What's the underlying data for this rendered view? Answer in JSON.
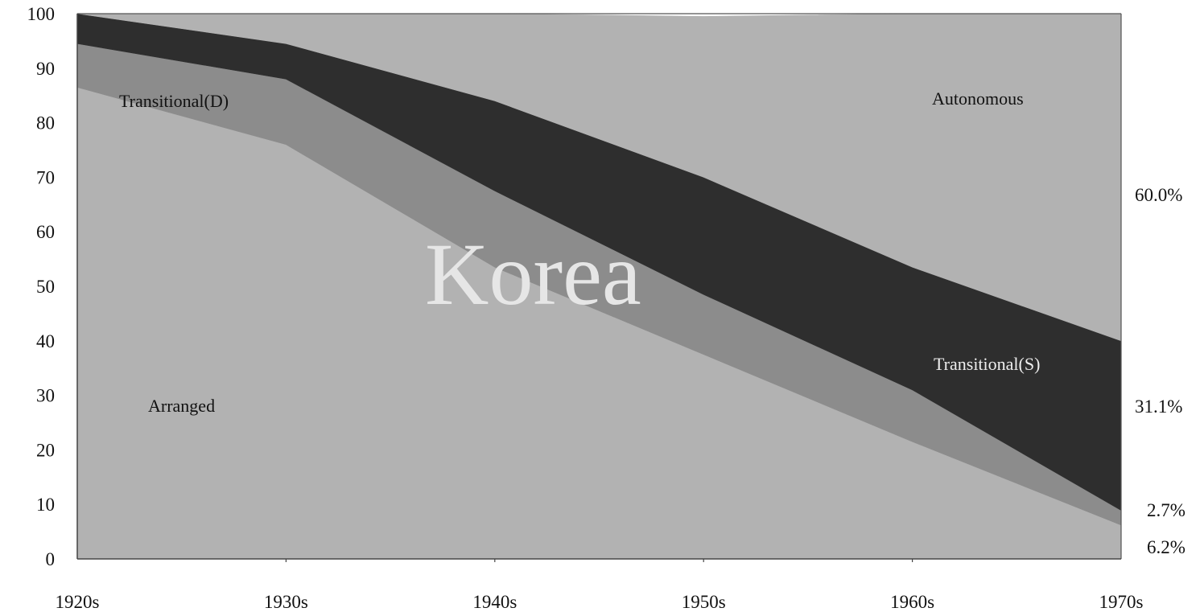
{
  "chart_data": {
    "type": "area",
    "stacked": true,
    "percent_stacked": true,
    "categories": [
      "1920s",
      "1930s",
      "1940s",
      "1950s",
      "1960s",
      "1970s"
    ],
    "series": [
      {
        "name": "Arranged",
        "values": [
          86.5,
          76,
          53.5,
          37.5,
          21.5,
          6.2
        ],
        "color": "#b2b2b2",
        "label_color": "#111111"
      },
      {
        "name": "Transitional(D)",
        "values": [
          8,
          12,
          14,
          11,
          9.5,
          2.7
        ],
        "color": "#8c8c8c",
        "label_color": "#111111"
      },
      {
        "name": "Transitional(S)",
        "values": [
          5.5,
          6.5,
          16.5,
          21.5,
          22.5,
          31.1
        ],
        "color": "#2e2e2e",
        "label_color": "#eeeeee"
      },
      {
        "name": "Autonomous",
        "values": [
          0,
          5.5,
          16,
          29.5,
          46.5,
          60.0
        ],
        "color": "#b2b2b2",
        "label_color": "#111111"
      }
    ],
    "y_ticks": [
      "0",
      "10",
      "20",
      "30",
      "40",
      "50",
      "60",
      "70",
      "80",
      "90",
      "100"
    ],
    "ylim": [
      0,
      100
    ],
    "end_labels": [
      {
        "series": "Autonomous",
        "text": "60.0%"
      },
      {
        "series": "Transitional(S)",
        "text": "31.1%"
      },
      {
        "series": "Transitional(D)",
        "text": "2.7%"
      },
      {
        "series": "Arranged",
        "text": "6.2%"
      }
    ],
    "watermark": "Korea",
    "grid": false,
    "legend": "none"
  }
}
